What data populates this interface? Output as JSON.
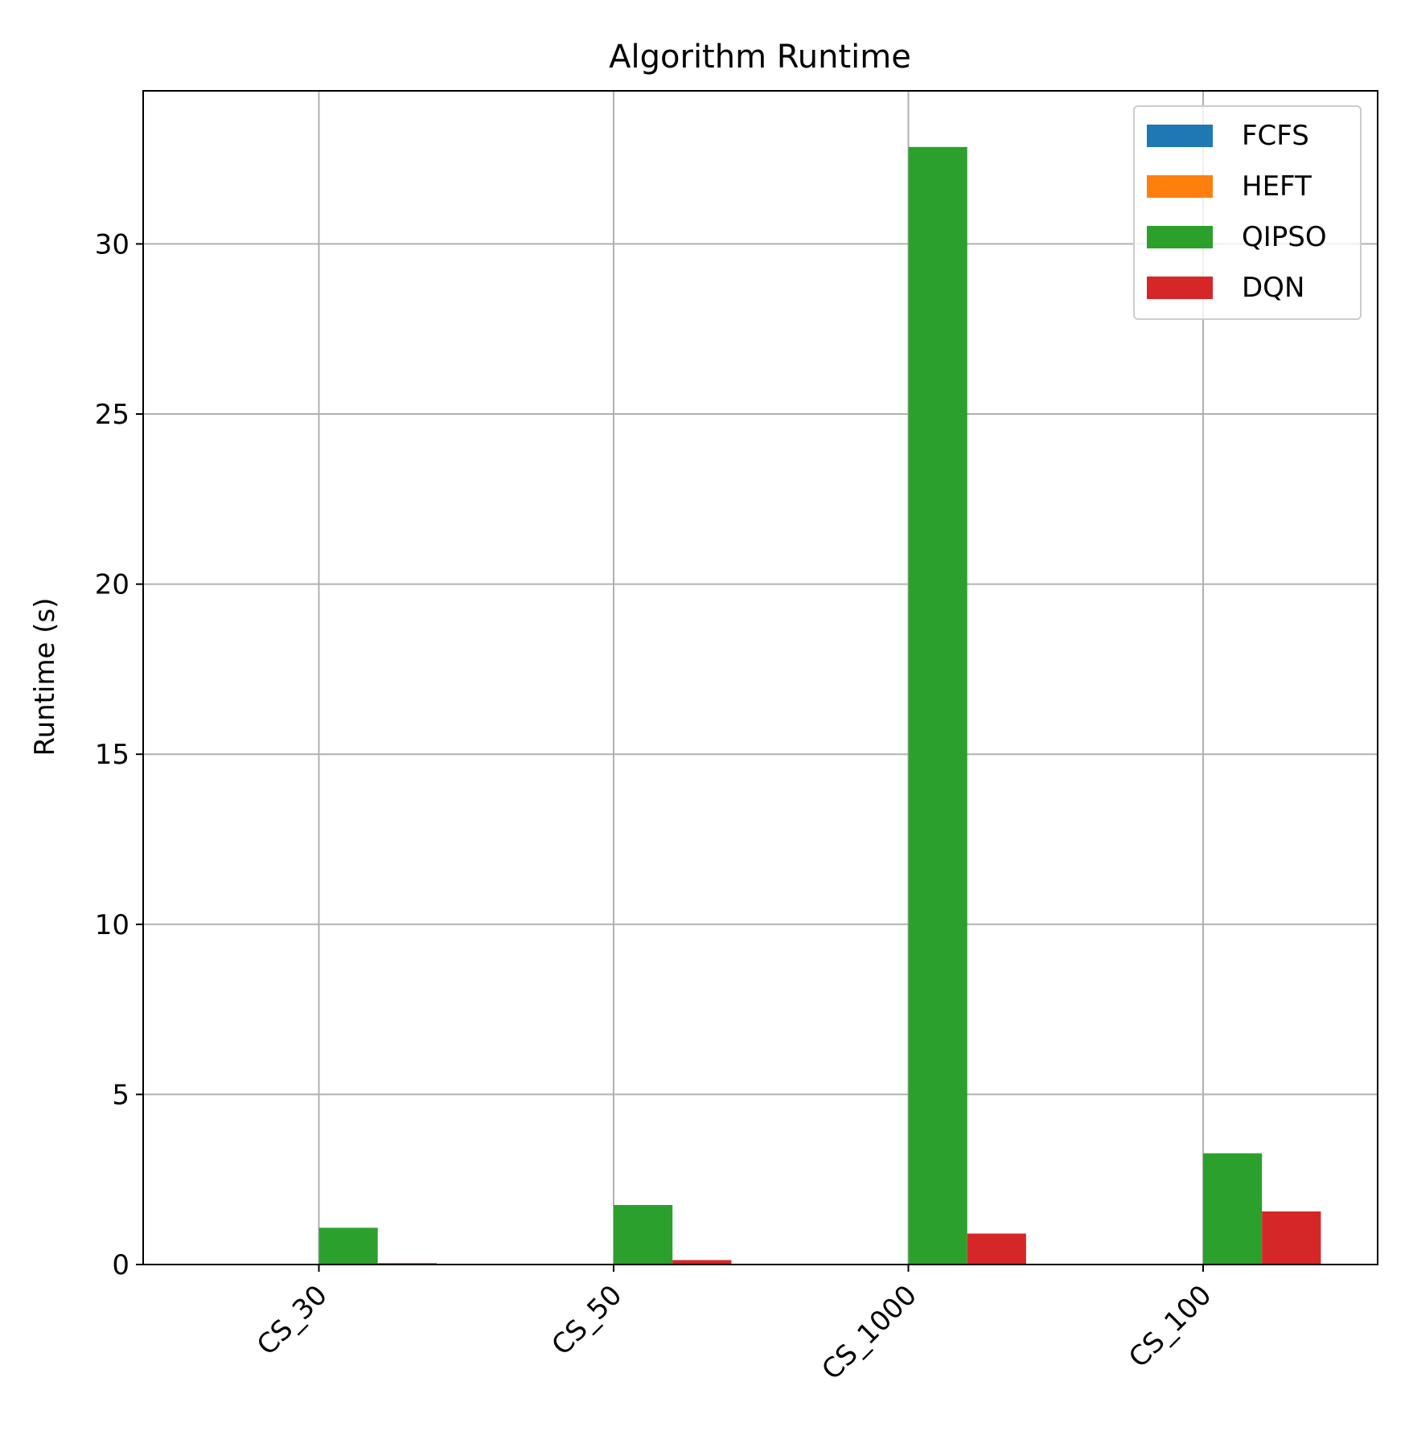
{
  "chart_data": {
    "type": "bar",
    "title": "Algorithm Runtime",
    "xlabel": "",
    "ylabel": "Runtime (s)",
    "categories": [
      "CS_30",
      "CS_50",
      "CS_1000",
      "CS_100"
    ],
    "series": [
      {
        "name": "FCFS",
        "color": "#1f77b4",
        "values": [
          0.0,
          0.0,
          0.0,
          0.0
        ]
      },
      {
        "name": "HEFT",
        "color": "#ff7f0e",
        "values": [
          0.0,
          0.0,
          0.0,
          0.0
        ]
      },
      {
        "name": "QIPSO",
        "color": "#2ca02c",
        "values": [
          1.08,
          1.75,
          32.85,
          3.27
        ]
      },
      {
        "name": "DQN",
        "color": "#d62728",
        "values": [
          0.04,
          0.13,
          0.91,
          1.56
        ]
      }
    ],
    "ylim": [
      0,
      34.5
    ],
    "yticks": [
      "0",
      "5",
      "10",
      "15",
      "20",
      "25",
      "30"
    ],
    "grid": true,
    "legend_position": "top-right"
  }
}
